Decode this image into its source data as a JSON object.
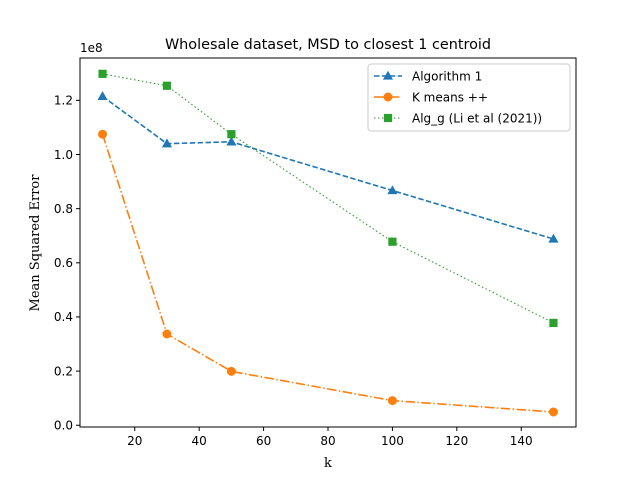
{
  "chart_data": {
    "type": "line",
    "title": "Wholesale dataset, MSD to closest 1 centroid",
    "xlabel": "k",
    "ylabel": "Mean Squared Error",
    "y_scale_label": "1e8",
    "xlim": [
      3.0,
      157.0
    ],
    "ylim": [
      -0.0065,
      1.3565
    ],
    "xticks": [
      20,
      40,
      60,
      80,
      100,
      120,
      140
    ],
    "xtick_labels": [
      "20",
      "40",
      "60",
      "80",
      "100",
      "120",
      "140"
    ],
    "yticks": [
      0.0,
      0.2,
      0.4,
      0.6,
      0.8,
      1.0,
      1.2
    ],
    "ytick_labels": [
      "0.0",
      "0.2",
      "0.4",
      "0.6",
      "0.8",
      "1.0",
      "1.2"
    ],
    "legend_position": "top-right",
    "x": [
      10,
      30,
      50,
      100,
      150
    ],
    "series": [
      {
        "name": "Algorithm 1",
        "values": [
          1.215,
          1.04,
          1.047,
          0.867,
          0.688
        ],
        "color": "#1f77b4",
        "marker": "triangle",
        "dash": "dashed"
      },
      {
        "name": "K means ++",
        "values": [
          1.075,
          0.337,
          0.199,
          0.091,
          0.049
        ],
        "color": "#ff7f0e",
        "marker": "circle",
        "dash": "dashdot"
      },
      {
        "name": "Alg_g (Li et al (2021))",
        "values": [
          1.298,
          1.254,
          1.075,
          0.678,
          0.378
        ],
        "color": "#2ca02c",
        "marker": "square",
        "dash": "dotted"
      }
    ]
  }
}
